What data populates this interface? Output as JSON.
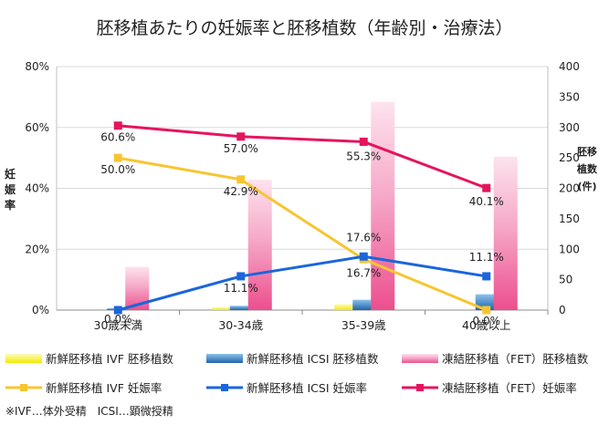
{
  "page": {
    "title": "胚移植あたりの妊娠率と胚移植数（年齢別・治療法）",
    "note": "※IVF…体外受精　ICSI…顕微授精"
  },
  "chart_data": {
    "type": "bar+line",
    "categories": [
      "30歳未満",
      "30-34歳",
      "35-39歳",
      "40歳以上"
    ],
    "y_left": {
      "label": "妊娠率",
      "lim": [
        0,
        80
      ],
      "ticks": [
        "0%",
        "20%",
        "40%",
        "60%",
        "80%"
      ],
      "tick_values": [
        0,
        20,
        40,
        60,
        80
      ]
    },
    "y_right": {
      "label": "胚移植数",
      "unit": "(件)",
      "lim": [
        0,
        400
      ],
      "ticks": [
        "0",
        "50",
        "100",
        "150",
        "200",
        "250",
        "300",
        "350",
        "400"
      ],
      "tick_values": [
        0,
        50,
        100,
        150,
        200,
        250,
        300,
        350,
        400
      ]
    },
    "bar_series": [
      {
        "name": "新鮮胚移植 IVF 胚移植数",
        "axis": "right",
        "color": "#f5ef1e",
        "values": [
          0,
          5,
          10,
          0
        ]
      },
      {
        "name": "新鮮胚移植 ICSI 胚移植数",
        "axis": "right",
        "color": "#3d86c6",
        "values": [
          3,
          7,
          17,
          26
        ]
      },
      {
        "name": "凍結胚移植（FET）胚移植数",
        "axis": "right",
        "color": "#ee6ea5",
        "values": [
          71,
          214,
          342,
          252
        ]
      }
    ],
    "line_series": [
      {
        "name": "新鮮胚移植 IVF 妊娠率",
        "axis": "left",
        "color": "#f7c531",
        "values": [
          50.0,
          42.9,
          16.7,
          0.0
        ],
        "labels": [
          "50.0%",
          "42.9%",
          "16.7%",
          "0.0%"
        ]
      },
      {
        "name": "新鮮胚移植 ICSI 妊娠率",
        "axis": "left",
        "color": "#1a66dc",
        "values": [
          0.0,
          11.1,
          17.6,
          11.1
        ],
        "labels": [
          "0.0%",
          "11.1%",
          "17.6%",
          "11.1%"
        ]
      },
      {
        "name": "凍結胚移植（FET）妊娠率",
        "axis": "left",
        "color": "#e6145f",
        "values": [
          60.6,
          57.0,
          55.3,
          40.1
        ],
        "labels": [
          "60.6%",
          "57.0%",
          "55.3%",
          "40.1%"
        ]
      }
    ],
    "legend_placement": "bottom",
    "grid": "horizontal"
  }
}
